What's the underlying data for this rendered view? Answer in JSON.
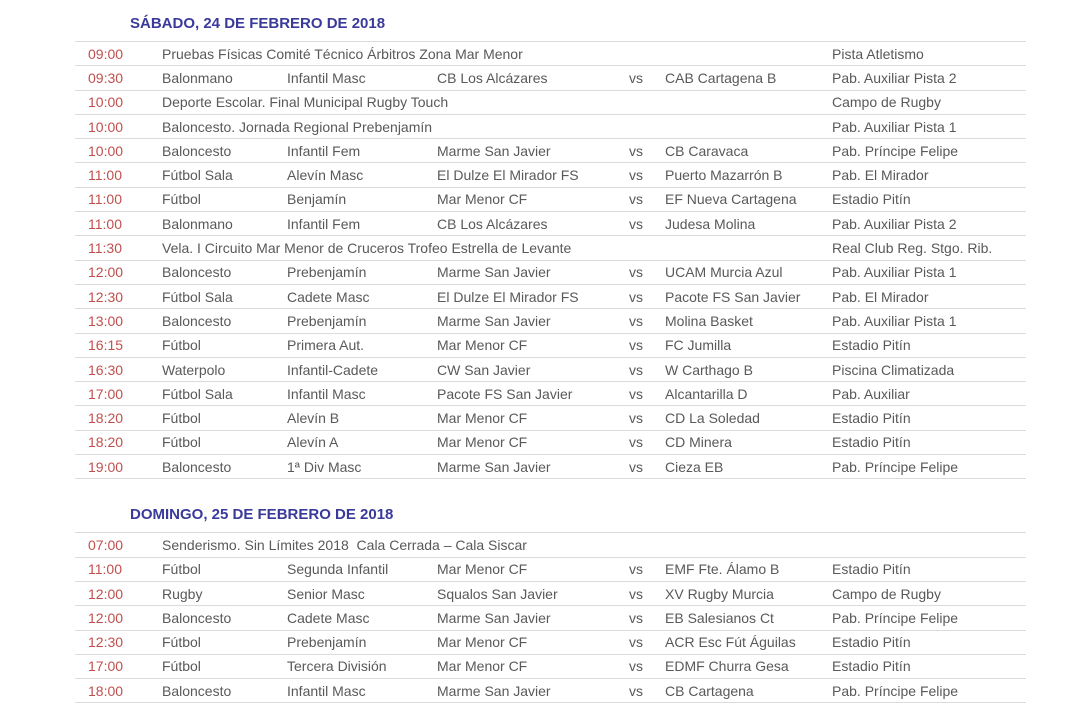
{
  "labels": {
    "vs": "vs"
  },
  "colors": {
    "title_blue": "#3A3A9B",
    "time_red": "#C0504D",
    "body_gray": "#595959",
    "divider_gray": "#DBDBDB"
  },
  "sections": [
    {
      "title": "SÁBADO, 24 DE FEBRERO DE 2018",
      "rows": [
        {
          "time": "09:00",
          "description": "Pruebas Físicas Comité Técnico Árbitros Zona Mar Menor",
          "venue": "Pista Atletismo"
        },
        {
          "time": "09:30",
          "sport": "Balonmano",
          "category": "Infantil Masc",
          "home": "CB Los Alcázares",
          "away": "CAB Cartagena B",
          "venue": "Pab. Auxiliar Pista 2"
        },
        {
          "time": "10:00",
          "description": "Deporte Escolar. Final Municipal Rugby Touch",
          "venue": "Campo de Rugby"
        },
        {
          "time": "10:00",
          "description": "Baloncesto. Jornada Regional Prebenjamín",
          "venue": "Pab. Auxiliar Pista 1"
        },
        {
          "time": "10:00",
          "sport": "Baloncesto",
          "category": "Infantil Fem",
          "home": "Marme San Javier",
          "away": "CB Caravaca",
          "venue": "Pab. Príncipe Felipe"
        },
        {
          "time": "11:00",
          "sport": "Fútbol Sala",
          "category": "Alevín Masc",
          "home": "El Dulze El Mirador FS",
          "away": "Puerto Mazarrón B",
          "venue": "Pab. El Mirador"
        },
        {
          "time": "11:00",
          "sport": "Fútbol",
          "category": "Benjamín",
          "home": "Mar Menor CF",
          "away": "EF Nueva Cartagena",
          "venue": "Estadio Pitín"
        },
        {
          "time": "11:00",
          "sport": "Balonmano",
          "category": "Infantil Fem",
          "home": "CB Los Alcázares",
          "away": "Judesa Molina",
          "venue": "Pab. Auxiliar Pista 2"
        },
        {
          "time": "11:30",
          "description": "Vela. I Circuito Mar Menor de Cruceros Trofeo Estrella de Levante",
          "venue": "Real Club Reg. Stgo. Rib."
        },
        {
          "time": "12:00",
          "sport": "Baloncesto",
          "category": "Prebenjamín",
          "home": "Marme San Javier",
          "away": "UCAM Murcia Azul",
          "venue": "Pab. Auxiliar Pista 1"
        },
        {
          "time": "12:30",
          "sport": "Fútbol Sala",
          "category": "Cadete Masc",
          "home": "El Dulze El Mirador FS",
          "away": "Pacote FS San Javier",
          "venue": "Pab. El Mirador"
        },
        {
          "time": "13:00",
          "sport": "Baloncesto",
          "category": "Prebenjamín",
          "home": "Marme San Javier",
          "away": "Molina Basket",
          "venue": "Pab. Auxiliar Pista 1"
        },
        {
          "time": "16:15",
          "sport": "Fútbol",
          "category": "Primera Aut.",
          "home": "Mar Menor CF",
          "away": "FC Jumilla",
          "venue": "Estadio Pitín"
        },
        {
          "time": "16:30",
          "sport": "Waterpolo",
          "category": "Infantil-Cadete",
          "home": "CW San Javier",
          "away": "W Carthago B",
          "venue": "Piscina Climatizada"
        },
        {
          "time": "17:00",
          "sport": "Fútbol Sala",
          "category": "Infantil Masc",
          "home": "Pacote FS San Javier",
          "away": "Alcantarilla D",
          "venue": "Pab. Auxiliar"
        },
        {
          "time": "18:20",
          "sport": "Fútbol",
          "category": "Alevín B",
          "home": "Mar Menor CF",
          "away": "CD La Soledad",
          "venue": "Estadio Pitín"
        },
        {
          "time": "18:20",
          "sport": "Fútbol",
          "category": "Alevín A",
          "home": "Mar Menor CF",
          "away": "CD Minera",
          "venue": "Estadio Pitín"
        },
        {
          "time": "19:00",
          "sport": "Baloncesto",
          "category": "1ª Div Masc",
          "home": "Marme San Javier",
          "away": "Cieza EB",
          "venue": "Pab. Príncipe Felipe"
        }
      ]
    },
    {
      "title": "DOMINGO, 25 DE FEBRERO DE 2018",
      "rows": [
        {
          "time": "07:00",
          "description": "Senderismo. Sin Límites 2018  Cala Cerrada – Cala Siscar",
          "venue": ""
        },
        {
          "time": "11:00",
          "sport": "Fútbol",
          "category": "Segunda Infantil",
          "home": "Mar Menor CF",
          "away": "EMF Fte. Álamo B",
          "venue": "Estadio Pitín"
        },
        {
          "time": "12:00",
          "sport": "Rugby",
          "category": "Senior Masc",
          "home": "Squalos San Javier",
          "away": "XV Rugby Murcia",
          "venue": "Campo de Rugby"
        },
        {
          "time": "12:00",
          "sport": "Baloncesto",
          "category": "Cadete Masc",
          "home": "Marme San Javier",
          "away": "EB Salesianos Ct",
          "venue": "Pab. Príncipe Felipe"
        },
        {
          "time": "12:30",
          "sport": "Fútbol",
          "category": "Prebenjamín",
          "home": "Mar Menor CF",
          "away": "ACR Esc Fút Águilas",
          "venue": "Estadio Pitín"
        },
        {
          "time": "17:00",
          "sport": "Fútbol",
          "category": "Tercera División",
          "home": "Mar Menor CF",
          "away": "EDMF Churra Gesa",
          "venue": "Estadio Pitín"
        },
        {
          "time": "18:00",
          "sport": "Baloncesto",
          "category": "Infantil Masc",
          "home": "Marme San Javier",
          "away": "CB Cartagena",
          "venue": "Pab. Príncipe Felipe"
        }
      ]
    }
  ]
}
